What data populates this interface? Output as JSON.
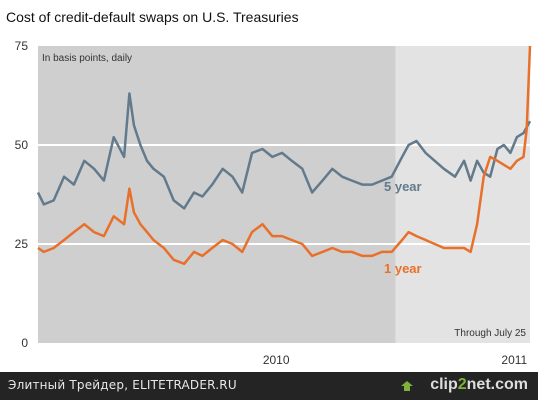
{
  "chart_data": {
    "type": "line",
    "title": "Cost of credit-default swaps on U.S. Treasuries",
    "subtitle": "In basis points, daily",
    "note": "Through July 25",
    "ylim": [
      0,
      75
    ],
    "yticks": [
      "0",
      "25",
      "50",
      "75"
    ],
    "xticks": [
      "2010",
      "2011"
    ],
    "x_start": "2009-07-01",
    "x_end": "2011-07-25",
    "xtick_dates": [
      "2010-07-01",
      "2011-07-01"
    ],
    "shade_split": "2010-12-31",
    "grid": true,
    "series": [
      {
        "name": "5 year",
        "color": "#627a8c",
        "x": [
          "2009-07-01",
          "2009-07-10",
          "2009-07-25",
          "2009-08-10",
          "2009-08-25",
          "2009-09-10",
          "2009-09-25",
          "2009-10-10",
          "2009-10-25",
          "2009-11-10",
          "2009-11-18",
          "2009-11-25",
          "2009-12-05",
          "2009-12-15",
          "2009-12-25",
          "2010-01-10",
          "2010-01-25",
          "2010-02-10",
          "2010-02-25",
          "2010-03-10",
          "2010-03-25",
          "2010-04-10",
          "2010-04-25",
          "2010-05-10",
          "2010-05-25",
          "2010-06-10",
          "2010-06-25",
          "2010-07-10",
          "2010-07-25",
          "2010-08-10",
          "2010-08-25",
          "2010-09-10",
          "2010-09-25",
          "2010-10-10",
          "2010-10-25",
          "2010-11-10",
          "2010-11-25",
          "2010-12-10",
          "2010-12-25",
          "2011-01-10",
          "2011-01-20",
          "2011-02-01",
          "2011-02-15",
          "2011-03-01",
          "2011-03-15",
          "2011-04-01",
          "2011-04-15",
          "2011-04-25",
          "2011-05-05",
          "2011-05-15",
          "2011-05-25",
          "2011-06-05",
          "2011-06-15",
          "2011-06-25",
          "2011-07-05",
          "2011-07-15",
          "2011-07-25"
        ],
        "y": [
          38,
          35,
          36,
          42,
          40,
          46,
          44,
          41,
          52,
          47,
          63,
          55,
          50,
          46,
          44,
          42,
          36,
          34,
          38,
          37,
          40,
          44,
          42,
          38,
          48,
          49,
          47,
          48,
          46,
          44,
          38,
          41,
          44,
          42,
          41,
          40,
          40,
          41,
          42,
          47,
          50,
          51,
          48,
          46,
          44,
          42,
          46,
          41,
          46,
          43,
          42,
          49,
          50,
          48,
          52,
          53,
          56
        ]
      },
      {
        "name": "1 year",
        "color": "#e8702a",
        "x": [
          "2009-07-01",
          "2009-07-10",
          "2009-07-25",
          "2009-08-10",
          "2009-08-25",
          "2009-09-10",
          "2009-09-25",
          "2009-10-10",
          "2009-10-25",
          "2009-11-10",
          "2009-11-18",
          "2009-11-25",
          "2009-12-05",
          "2009-12-15",
          "2009-12-25",
          "2010-01-10",
          "2010-01-25",
          "2010-02-10",
          "2010-02-25",
          "2010-03-10",
          "2010-03-25",
          "2010-04-10",
          "2010-04-25",
          "2010-05-10",
          "2010-05-25",
          "2010-06-10",
          "2010-06-25",
          "2010-07-10",
          "2010-07-25",
          "2010-08-10",
          "2010-08-25",
          "2010-09-10",
          "2010-09-25",
          "2010-10-10",
          "2010-10-25",
          "2010-11-10",
          "2010-11-25",
          "2010-12-10",
          "2010-12-25",
          "2011-01-10",
          "2011-01-20",
          "2011-02-01",
          "2011-02-15",
          "2011-03-01",
          "2011-03-15",
          "2011-04-01",
          "2011-04-15",
          "2011-04-25",
          "2011-05-05",
          "2011-05-15",
          "2011-05-25",
          "2011-06-05",
          "2011-06-15",
          "2011-06-25",
          "2011-07-05",
          "2011-07-15",
          "2011-07-20",
          "2011-07-25"
        ],
        "y": [
          24,
          23,
          24,
          26,
          28,
          30,
          28,
          27,
          32,
          30,
          39,
          33,
          30,
          28,
          26,
          24,
          21,
          20,
          23,
          22,
          24,
          26,
          25,
          23,
          28,
          30,
          27,
          27,
          26,
          25,
          22,
          23,
          24,
          23,
          23,
          22,
          22,
          23,
          23,
          26,
          28,
          27,
          26,
          25,
          24,
          24,
          24,
          23,
          30,
          42,
          47,
          46,
          45,
          44,
          46,
          47,
          54,
          75
        ]
      }
    ]
  },
  "footer": {
    "caption": "Элитный Трейдер, ELITETRADER.RU",
    "brand_prefix": "clip",
    "brand_mid": "2",
    "brand_suffix": "net.com"
  }
}
